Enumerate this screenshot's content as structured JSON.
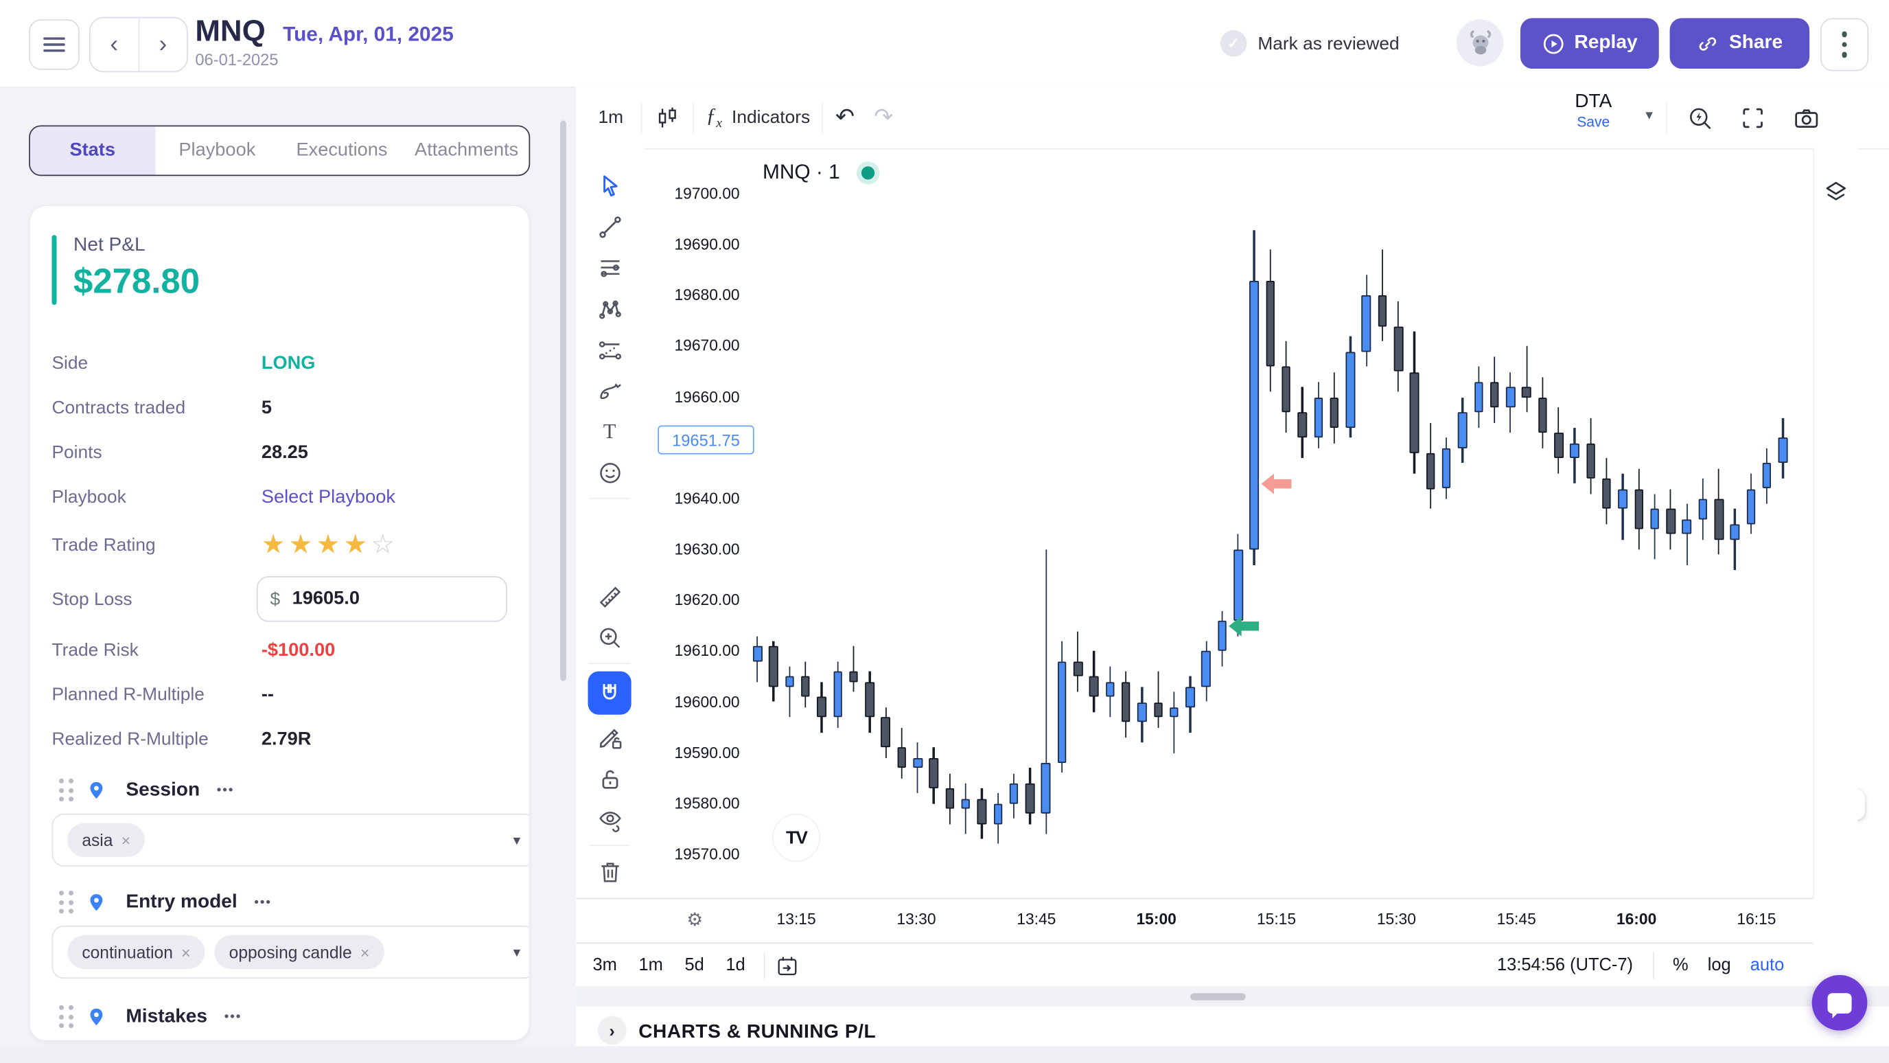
{
  "ui": {
    "ellipsis": "•••",
    "caret_down": "▾",
    "chip_close": "×",
    "chevron_left": "‹",
    "chevron_right": "›",
    "double_chevron": "»",
    "check": "✓",
    "undo": "↶",
    "redo": "↷",
    "gear": "⚙",
    "fx_f": "ƒ",
    "fx_x": "x"
  },
  "header": {
    "symbol": "MNQ",
    "date_title": "Tue, Apr, 01, 2025",
    "date_sub": "06-01-2025",
    "mark_reviewed_label": "Mark as reviewed",
    "replay_label": "Replay",
    "share_label": "Share"
  },
  "tabs": [
    {
      "label": "Stats",
      "active": true
    },
    {
      "label": "Playbook",
      "active": false
    },
    {
      "label": "Executions",
      "active": false
    },
    {
      "label": "Attachments",
      "active": false
    }
  ],
  "stats": {
    "net_pnl_label": "Net P&L",
    "net_pnl_value": "$278.80",
    "side_label": "Side",
    "side_value": "LONG",
    "contracts_label": "Contracts traded",
    "contracts_value": "5",
    "points_label": "Points",
    "points_value": "28.25",
    "playbook_label": "Playbook",
    "playbook_value": "Select Playbook",
    "rating_label": "Trade Rating",
    "rating_stars_filled": "★★★★",
    "rating_star_empty": "☆",
    "rating_value": "4 of 5",
    "stop_loss_label": "Stop Loss",
    "stop_loss_currency": "$",
    "stop_loss_value": "19605.0",
    "trade_risk_label": "Trade Risk",
    "trade_risk_value": "-$100.00",
    "planned_r_label": "Planned R-Multiple",
    "planned_r_value": "--",
    "realized_r_label": "Realized R-Multiple",
    "realized_r_value": "2.79R"
  },
  "sections": {
    "session": {
      "title": "Session",
      "chips": [
        "asia"
      ]
    },
    "entry_model": {
      "title": "Entry model",
      "chips": [
        "continuation",
        "opposing candle"
      ]
    },
    "mistakes": {
      "title": "Mistakes"
    }
  },
  "chart_toolbar": {
    "interval": "1m",
    "indicators_label": "Indicators",
    "layout_name": "DTA",
    "save_label": "Save"
  },
  "chart": {
    "legend_symbol": "MNQ · 1",
    "last_price": "19651.75",
    "tv_logo": "TV"
  },
  "chart_bottom": {
    "ranges": [
      "3m",
      "1m",
      "5d",
      "1d"
    ],
    "clock": "13:54:56 (UTC-7)",
    "percent_label": "%",
    "log_label": "log",
    "auto_label": "auto"
  },
  "charts_running_pl": {
    "title": "CHARTS & RUNNING P/L"
  },
  "chart_data": {
    "type": "candlestick",
    "symbol": "MNQ",
    "interval": "1m",
    "title": "MNQ · 1",
    "ylim": [
      19565,
      19700
    ],
    "grid": false,
    "price_ticks": [
      "19700.00",
      "19690.00",
      "19680.00",
      "19670.00",
      "19660.00",
      "19650.00",
      "19640.00",
      "19630.00",
      "19620.00",
      "19610.00",
      "19600.00",
      "19590.00",
      "19580.00",
      "19570.00"
    ],
    "time_ticks": [
      {
        "label": "13:15",
        "bold": false
      },
      {
        "label": "13:30",
        "bold": false
      },
      {
        "label": "13:45",
        "bold": false
      },
      {
        "label": "15:00",
        "bold": true
      },
      {
        "label": "15:15",
        "bold": false
      },
      {
        "label": "15:30",
        "bold": false
      },
      {
        "label": "15:45",
        "bold": false
      },
      {
        "label": "16:00",
        "bold": true
      },
      {
        "label": "16:15",
        "bold": false
      }
    ],
    "last_price": 19651.75,
    "candles": [
      [
        19608,
        19613,
        19604,
        19611
      ],
      [
        19611,
        19612,
        19600,
        19603
      ],
      [
        19603,
        19607,
        19597,
        19605
      ],
      [
        19605,
        19608,
        19599,
        19601
      ],
      [
        19601,
        19604,
        19594,
        19597
      ],
      [
        19597,
        19608,
        19595,
        19606
      ],
      [
        19606,
        19611,
        19602,
        19604
      ],
      [
        19604,
        19606,
        19594,
        19597
      ],
      [
        19597,
        19599,
        19589,
        19591
      ],
      [
        19591,
        19595,
        19585,
        19587
      ],
      [
        19587,
        19592,
        19582,
        19589
      ],
      [
        19589,
        19591,
        19580,
        19583
      ],
      [
        19583,
        19586,
        19576,
        19579
      ],
      [
        19579,
        19584,
        19574,
        19581
      ],
      [
        19581,
        19583,
        19573,
        19576
      ],
      [
        19576,
        19582,
        19572,
        19580
      ],
      [
        19580,
        19586,
        19577,
        19584
      ],
      [
        19584,
        19587,
        19576,
        19578
      ],
      [
        19578,
        19630,
        19574,
        19588
      ],
      [
        19588,
        19612,
        19586,
        19608
      ],
      [
        19608,
        19614,
        19602,
        19605
      ],
      [
        19605,
        19610,
        19598,
        19601
      ],
      [
        19601,
        19607,
        19597,
        19604
      ],
      [
        19604,
        19606,
        19593,
        19596
      ],
      [
        19596,
        19603,
        19592,
        19600
      ],
      [
        19600,
        19606,
        19595,
        19597
      ],
      [
        19597,
        19602,
        19590,
        19599
      ],
      [
        19599,
        19605,
        19594,
        19603
      ],
      [
        19603,
        19612,
        19600,
        19610
      ],
      [
        19610,
        19618,
        19607,
        19616
      ],
      [
        19616,
        19633,
        19613,
        19630
      ],
      [
        19630,
        19693,
        19627,
        19683
      ],
      [
        19683,
        19689,
        19661,
        19666
      ],
      [
        19666,
        19671,
        19653,
        19657
      ],
      [
        19657,
        19662,
        19648,
        19652
      ],
      [
        19652,
        19663,
        19650,
        19660
      ],
      [
        19660,
        19665,
        19651,
        19654
      ],
      [
        19654,
        19672,
        19652,
        19669
      ],
      [
        19669,
        19684,
        19666,
        19680
      ],
      [
        19680,
        19689,
        19671,
        19674
      ],
      [
        19674,
        19679,
        19661,
        19665
      ],
      [
        19665,
        19673,
        19645,
        19649
      ],
      [
        19649,
        19655,
        19638,
        19642
      ],
      [
        19642,
        19652,
        19640,
        19650
      ],
      [
        19650,
        19660,
        19647,
        19657
      ],
      [
        19657,
        19666,
        19654,
        19663
      ],
      [
        19663,
        19668,
        19655,
        19658
      ],
      [
        19658,
        19665,
        19653,
        19662
      ],
      [
        19662,
        19670,
        19657,
        19660
      ],
      [
        19660,
        19664,
        19650,
        19653
      ],
      [
        19653,
        19658,
        19645,
        19648
      ],
      [
        19648,
        19654,
        19643,
        19651
      ],
      [
        19651,
        19656,
        19641,
        19644
      ],
      [
        19644,
        19648,
        19635,
        19638
      ],
      [
        19638,
        19645,
        19632,
        19642
      ],
      [
        19642,
        19646,
        19630,
        19634
      ],
      [
        19634,
        19641,
        19628,
        19638
      ],
      [
        19638,
        19642,
        19630,
        19633
      ],
      [
        19633,
        19639,
        19627,
        19636
      ],
      [
        19636,
        19644,
        19632,
        19640
      ],
      [
        19640,
        19646,
        19629,
        19632
      ],
      [
        19632,
        19638,
        19626,
        19635
      ],
      [
        19635,
        19645,
        19633,
        19642
      ],
      [
        19642,
        19650,
        19639,
        19647
      ],
      [
        19647,
        19656,
        19644,
        19652
      ]
    ],
    "markers": [
      {
        "index": 29,
        "price": 19615,
        "name": "buy-arrow",
        "color": "#2fae84"
      },
      {
        "index": 31,
        "price": 19643,
        "name": "sell-arrow",
        "color": "#f59d94"
      }
    ],
    "colors": {
      "up": "#4a8cf2",
      "up_border": "#1b2b47",
      "down": "#4e5565",
      "down_border": "#12161f",
      "wick_up": "#20304d",
      "wick_down": "#141a26",
      "last_price_accent": "#4b8bf5"
    }
  }
}
